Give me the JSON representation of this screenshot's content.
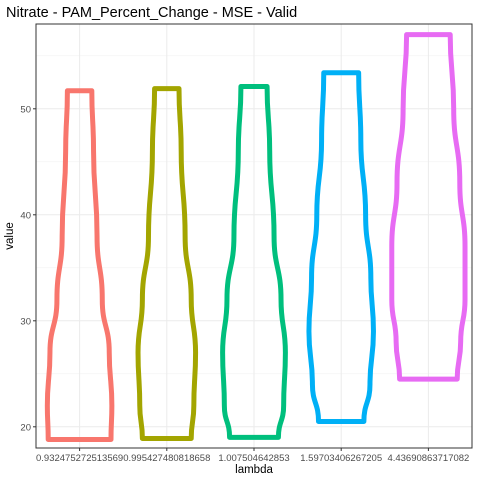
{
  "chart_data": {
    "type": "violin",
    "title": "Nitrate - PAM_Percent_Change - MSE - Valid",
    "xlabel": "lambda",
    "ylabel": "value",
    "ylim": [
      18,
      58
    ],
    "y_ticks": [
      20,
      30,
      40,
      50
    ],
    "grid": true,
    "legend": "none",
    "categories": [
      "0.932475272513569",
      "0.995427480818658",
      "1.007504642853",
      "1.59703406267205",
      "4.43690863717082"
    ],
    "series": [
      {
        "category": "0.932475272513569",
        "color": "#F8766D",
        "profile": [
          [
            18.8,
            0.72
          ],
          [
            22,
            0.74
          ],
          [
            27,
            0.68
          ],
          [
            32,
            0.52
          ],
          [
            38,
            0.4
          ],
          [
            46,
            0.32
          ],
          [
            51.7,
            0.28
          ]
        ]
      },
      {
        "category": "0.995427480818658",
        "color": "#A3A500",
        "profile": [
          [
            18.9,
            0.56
          ],
          [
            22,
            0.62
          ],
          [
            27,
            0.66
          ],
          [
            32,
            0.56
          ],
          [
            38,
            0.42
          ],
          [
            46,
            0.33
          ],
          [
            51.9,
            0.28
          ]
        ]
      },
      {
        "category": "1.007504642853",
        "color": "#00BF7D",
        "profile": [
          [
            19,
            0.56
          ],
          [
            22,
            0.68
          ],
          [
            27,
            0.72
          ],
          [
            32,
            0.62
          ],
          [
            38,
            0.46
          ],
          [
            46,
            0.36
          ],
          [
            52.1,
            0.3
          ]
        ]
      },
      {
        "category": "1.59703406267205",
        "color": "#00B0F6",
        "profile": [
          [
            20.5,
            0.52
          ],
          [
            24,
            0.66
          ],
          [
            29,
            0.74
          ],
          [
            34,
            0.68
          ],
          [
            40,
            0.56
          ],
          [
            47,
            0.45
          ],
          [
            53.4,
            0.4
          ]
        ]
      },
      {
        "category": "4.43690863717082",
        "color": "#E76BF3",
        "profile": [
          [
            24.5,
            0.66
          ],
          [
            28,
            0.74
          ],
          [
            32,
            0.84
          ],
          [
            37,
            0.84
          ],
          [
            43,
            0.72
          ],
          [
            50,
            0.58
          ],
          [
            57,
            0.5
          ]
        ]
      }
    ]
  }
}
